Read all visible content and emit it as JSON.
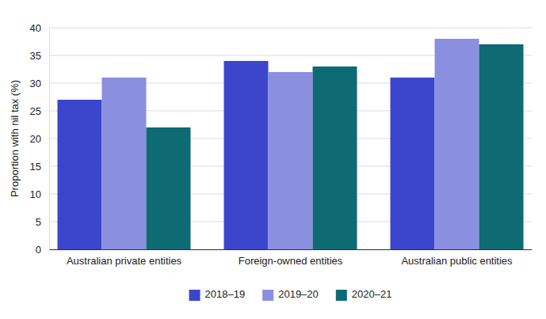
{
  "chart_data": {
    "type": "bar",
    "y_label": "Proportion with nil tax (%)",
    "categories": [
      "Australian private entities",
      "Foreign-owned entities",
      "Australian public entities"
    ],
    "series": [
      {
        "name": "2018–19",
        "color": "#3b46cc",
        "values": [
          27,
          34,
          31
        ]
      },
      {
        "name": "2019–20",
        "color": "#8a8fe0",
        "values": [
          31,
          32,
          38
        ]
      },
      {
        "name": "2020–21",
        "color": "#0e6b73",
        "values": [
          22,
          33,
          37
        ]
      }
    ],
    "ylim": [
      0,
      40
    ],
    "yticks": [
      0,
      5,
      10,
      15,
      20,
      25,
      30,
      35,
      40
    ],
    "grid": true,
    "legend": "bottom"
  }
}
